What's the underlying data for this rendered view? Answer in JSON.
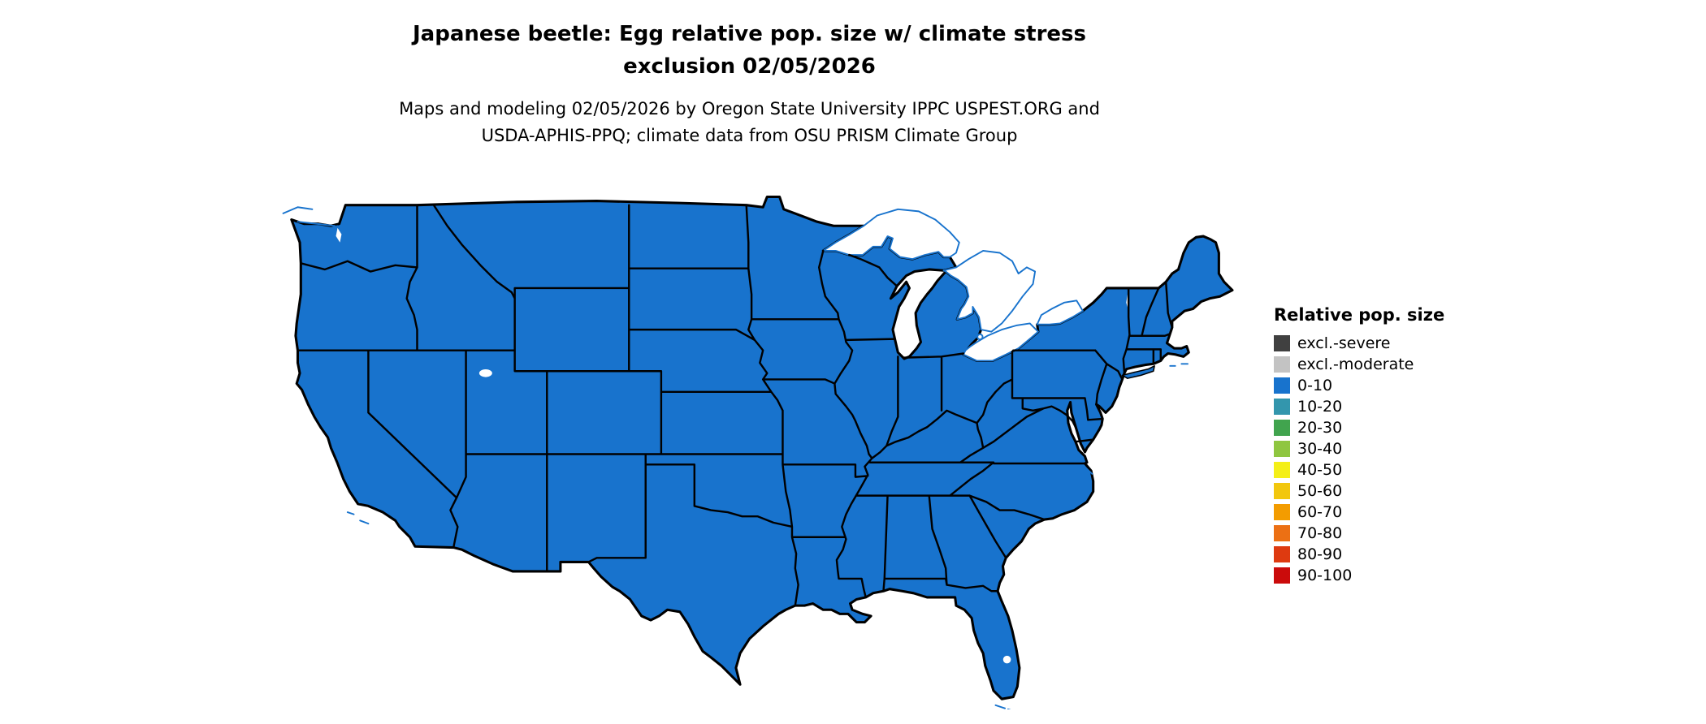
{
  "title": {
    "line1": "Japanese beetle: Egg relative pop. size w/ climate stress",
    "line2": "exclusion 02/05/2026"
  },
  "subtitle": {
    "line1": "Maps and modeling 02/05/2026 by Oregon State University IPPC USPEST.ORG and",
    "line2": "USDA-APHIS-PPQ; climate data from OSU PRISM Climate Group"
  },
  "map": {
    "region": "contiguous United States",
    "uniform_class": "0-10",
    "land_color": "#1873cd",
    "border_color": "#000000",
    "water_color": "#ffffff",
    "water_outline_color": "#1873cd"
  },
  "legend": {
    "title": "Relative pop. size",
    "items": [
      {
        "label": "excl.-severe",
        "color": "#404040"
      },
      {
        "label": "excl.-moderate",
        "color": "#c3c3c3"
      },
      {
        "label": "0-10",
        "color": "#1873cd"
      },
      {
        "label": "10-20",
        "color": "#3396ad"
      },
      {
        "label": "20-30",
        "color": "#41a44e"
      },
      {
        "label": "30-40",
        "color": "#8fc640"
      },
      {
        "label": "40-50",
        "color": "#f4ef18"
      },
      {
        "label": "50-60",
        "color": "#f2c70e"
      },
      {
        "label": "60-70",
        "color": "#f39c00"
      },
      {
        "label": "70-80",
        "color": "#ec7014"
      },
      {
        "label": "80-90",
        "color": "#de3a10"
      },
      {
        "label": "90-100",
        "color": "#cb0b0b"
      }
    ]
  }
}
